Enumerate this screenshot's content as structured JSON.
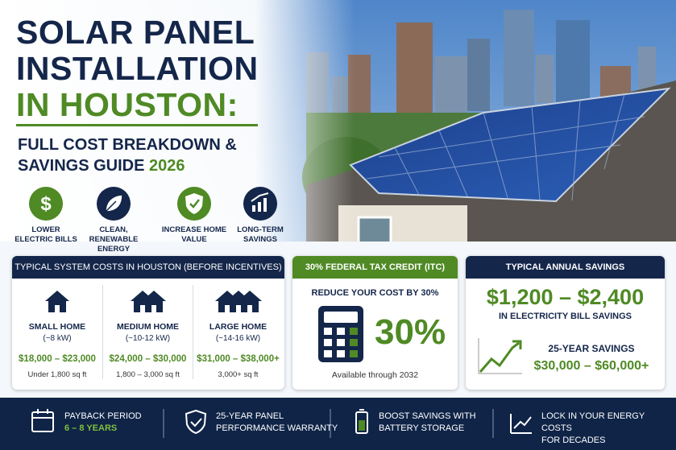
{
  "header": {
    "title": [
      "SOLAR PANEL",
      "INSTALLATION",
      "IN HOUSTON:"
    ],
    "subtitle": [
      "FULL COST BREAKDOWN &",
      "SAVINGS GUIDE"
    ],
    "year": "2026"
  },
  "benefits": [
    [
      "LOWER",
      "ELECTRIC BILLS"
    ],
    [
      "CLEAN,",
      "RENEWABLE ENERGY"
    ],
    [
      "INCREASE HOME",
      "VALUE"
    ],
    [
      "LONG-TERM",
      "SAVINGS"
    ]
  ],
  "costs": {
    "title": "TYPICAL SYSTEM COSTS IN HOUSTON (BEFORE INCENTIVES)",
    "homes": [
      {
        "name": "SMALL HOME",
        "size": "(~8 kW)",
        "price": "$18,000 – $23,000",
        "area": "Under 1,800 sq ft"
      },
      {
        "name": "MEDIUM HOME",
        "size": "(~10-12 kW)",
        "price": "$24,000 – $30,000",
        "area": "1,800 – 3,000 sq ft"
      },
      {
        "name": "LARGE HOME",
        "size": "(~14-16 kW)",
        "price": "$31,000 – $38,000+",
        "area": "3,000+ sq ft"
      }
    ]
  },
  "tax_credit": {
    "title": "30% FEDERAL TAX CREDIT (ITC)",
    "subtitle": "REDUCE YOUR COST BY 30%",
    "big": "30%",
    "note": "Available through 2032"
  },
  "savings": {
    "title": "TYPICAL ANNUAL SAVINGS",
    "annual": "$1,200 – $2,400",
    "annual_note": "IN ELECTRICITY BILL SAVINGS",
    "long_term_label": "25-YEAR SAVINGS",
    "long_term": "$30,000 – $60,000+"
  },
  "footer": [
    [
      "PAYBACK PERIOD",
      "6 – 8 YEARS"
    ],
    [
      "25-YEAR PANEL",
      "PERFORMANCE WARRANTY"
    ],
    [
      "BOOST SAVINGS WITH",
      "BATTERY STORAGE"
    ],
    [
      "LOCK IN YOUR ENERGY COSTS",
      "FOR DECADES"
    ]
  ]
}
